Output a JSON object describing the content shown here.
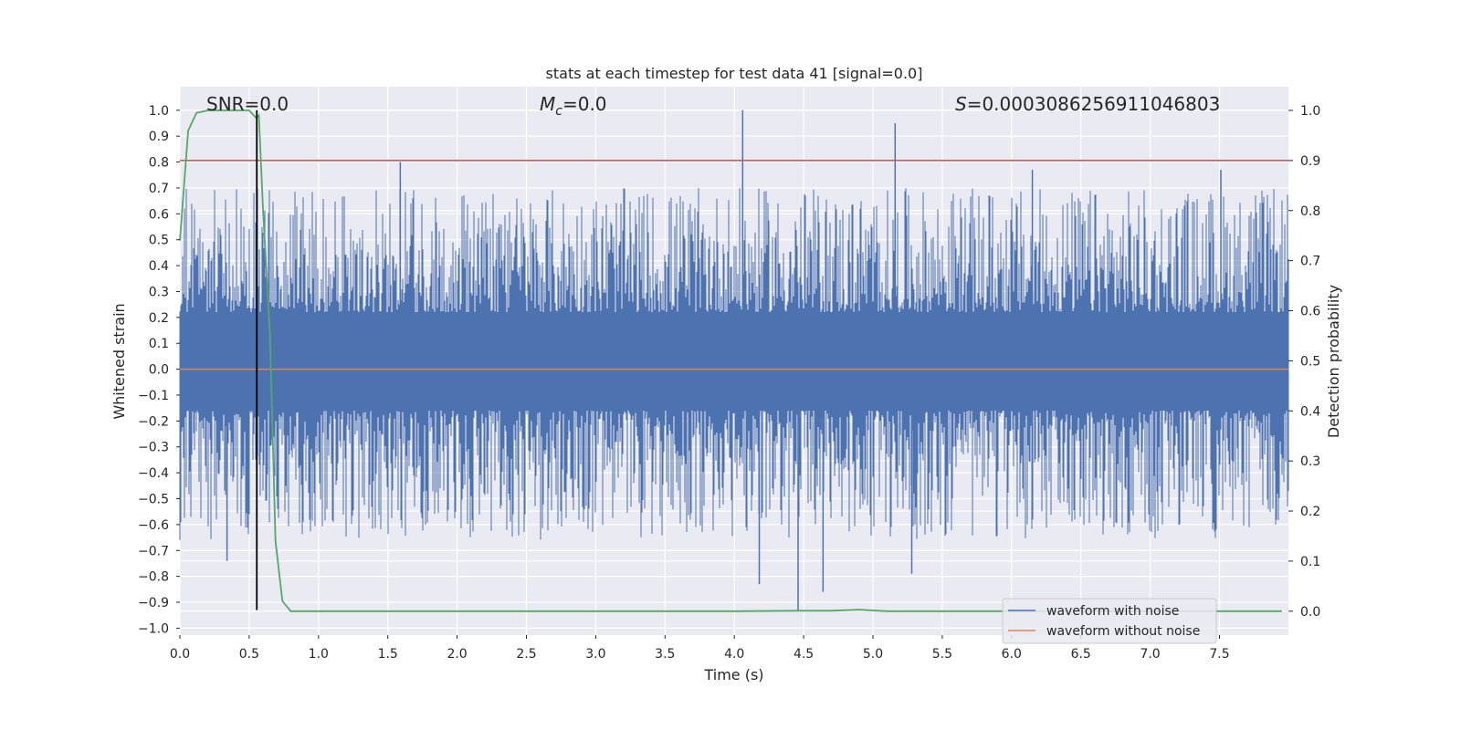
{
  "chart_data": {
    "type": "line",
    "title": "stats at each timestep for test data 41 [signal=0.0]",
    "xlabel": "Time (s)",
    "ylabel": "Whitened strain",
    "ylabel_right": "Detection probability",
    "xlim": [
      0.0,
      8.0
    ],
    "ylim": [
      -1.03,
      1.03
    ],
    "ylim_right": [
      -0.045,
      1.045
    ],
    "x_ticks": [
      0.0,
      0.5,
      1.0,
      1.5,
      2.0,
      2.5,
      3.0,
      3.5,
      4.0,
      4.5,
      5.0,
      5.5,
      6.0,
      6.5,
      7.0,
      7.5
    ],
    "x_tick_labels": [
      "0.0",
      "0.5",
      "1.0",
      "1.5",
      "2.0",
      "2.5",
      "3.0",
      "3.5",
      "4.0",
      "4.5",
      "5.0",
      "5.5",
      "6.0",
      "6.5",
      "7.0",
      "7.5"
    ],
    "y_ticks": [
      1.0,
      0.9,
      0.8,
      0.7,
      0.6,
      0.5,
      0.4,
      0.3,
      0.2,
      0.1,
      0.0,
      -0.1,
      -0.2,
      -0.3,
      -0.4,
      -0.5,
      -0.6,
      -0.7,
      -0.8,
      -0.9,
      -1.0
    ],
    "y_tick_labels": [
      "1.0",
      "0.9",
      "0.8",
      "0.7",
      "0.6",
      "0.5",
      "0.4",
      "0.3",
      "0.2",
      "0.1",
      "0.0",
      "−0.1",
      "−0.2",
      "−0.3",
      "−0.4",
      "−0.5",
      "−0.6",
      "−0.7",
      "−0.8",
      "−0.9",
      "−1.0"
    ],
    "y_right_ticks": [
      1.0,
      0.9,
      0.8,
      0.7,
      0.6,
      0.5,
      0.4,
      0.3,
      0.2,
      0.1,
      0.0
    ],
    "y_right_tick_labels": [
      "1.0",
      "0.9",
      "0.8",
      "0.7",
      "0.6",
      "0.5",
      "0.4",
      "0.3",
      "0.2",
      "0.1",
      "0.0"
    ],
    "annotations": {
      "snr": "SNR=0.0",
      "mc_symbol": "M",
      "mc_sub": "c",
      "mc_value": "=0.0",
      "s_symbol": "S",
      "s_value": "=0.0003086256911046803"
    },
    "legend": {
      "placement": "lower-right",
      "entries": [
        {
          "label": "waveform with noise",
          "color": "#4c72b0"
        },
        {
          "label": "waveform without noise",
          "color": "#dd8452"
        }
      ]
    },
    "series": [
      {
        "name": "waveform with noise",
        "color": "#4c72b0",
        "kind": "noise",
        "upper_envelope_typical": 0.42,
        "lower_envelope_typical": -0.38,
        "spikes": [
          {
            "x": 4.06,
            "y": 1.0
          },
          {
            "x": 5.16,
            "y": 0.95
          },
          {
            "x": 1.59,
            "y": 0.8
          },
          {
            "x": 6.15,
            "y": 0.77
          },
          {
            "x": 7.51,
            "y": 0.77
          },
          {
            "x": 4.46,
            "y": -0.93
          },
          {
            "x": 4.64,
            "y": -0.86
          },
          {
            "x": 4.18,
            "y": -0.83
          },
          {
            "x": 5.28,
            "y": -0.79
          },
          {
            "x": 0.34,
            "y": -0.74
          }
        ]
      },
      {
        "name": "waveform without noise",
        "color": "#dd8452",
        "x": [
          0.0,
          8.0
        ],
        "y": [
          0.0,
          0.0
        ]
      },
      {
        "name": "detection probability",
        "axis": "right",
        "color": "#55a868",
        "x": [
          0.0,
          0.06,
          0.12,
          0.2,
          0.3,
          0.4,
          0.5,
          0.55,
          0.57,
          0.6,
          0.65,
          0.69,
          0.74,
          0.8,
          0.85,
          1.5,
          2.5,
          3.5,
          4.0,
          4.45,
          4.7,
          4.9,
          5.1,
          6.0,
          7.0,
          7.95
        ],
        "y": [
          0.74,
          0.96,
          0.995,
          1.0,
          1.0,
          1.0,
          1.0,
          0.985,
          0.99,
          0.8,
          0.55,
          0.14,
          0.02,
          0.0,
          0.0,
          0.0,
          0.0,
          0.0,
          0.0,
          0.001,
          0.001,
          0.003,
          0.0,
          0.0,
          0.0,
          0.0
        ]
      }
    ],
    "threshold_line": {
      "axis": "right",
      "y": 0.9,
      "color": "#c44e52"
    },
    "marker_line": {
      "x": 0.555,
      "y_from": -0.93,
      "y_to": 1.0,
      "color": "#000000"
    }
  }
}
